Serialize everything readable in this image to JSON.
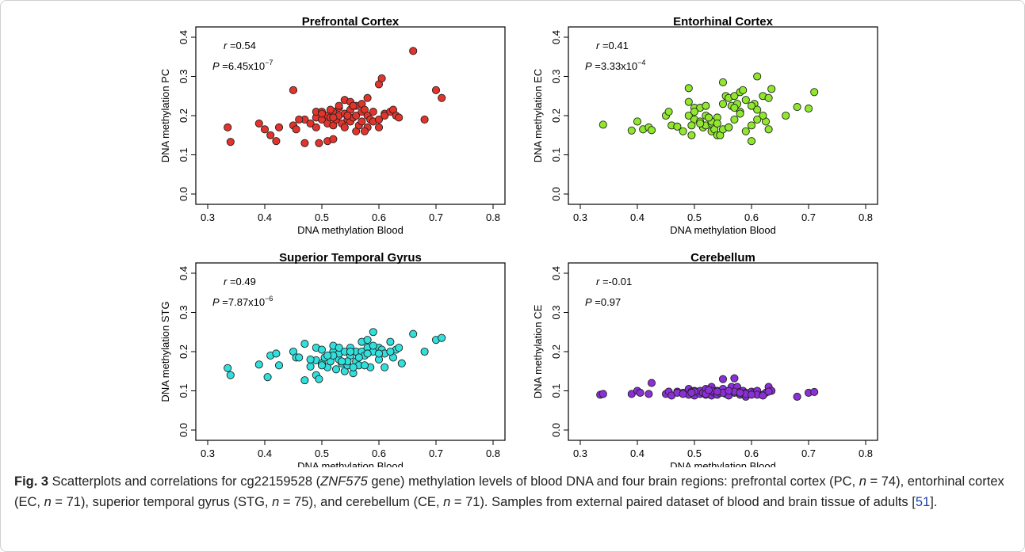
{
  "colors": {
    "pc": "#e3332b",
    "ec": "#8fe82c",
    "stg": "#2fe0dc",
    "ce": "#8b2fd6",
    "ref_link": "#1d3fa8"
  },
  "chart_data": [
    {
      "type": "scatter",
      "title": "Prefrontal Cortex",
      "xlabel": "DNA methylation Blood",
      "ylabel": "DNA methylation PC",
      "xlim": [
        0.3,
        0.8
      ],
      "ylim": [
        0.0,
        0.4
      ],
      "xticks": [
        "0.3",
        "0.4",
        "0.5",
        "0.6",
        "0.7",
        "0.8"
      ],
      "yticks": [
        "0.0",
        "0.1",
        "0.2",
        "0.3",
        "0.4"
      ],
      "r_label": "r",
      "r_value": "=0.54",
      "p_label": "P",
      "p_value": "=6.45x10",
      "p_exp": "−7",
      "color": "#e3332b",
      "x": [
        0.335,
        0.34,
        0.39,
        0.4,
        0.41,
        0.42,
        0.425,
        0.45,
        0.45,
        0.455,
        0.47,
        0.47,
        0.48,
        0.49,
        0.49,
        0.49,
        0.495,
        0.5,
        0.5,
        0.51,
        0.51,
        0.51,
        0.515,
        0.52,
        0.52,
        0.52,
        0.525,
        0.53,
        0.53,
        0.535,
        0.54,
        0.54,
        0.54,
        0.545,
        0.55,
        0.55,
        0.55,
        0.555,
        0.56,
        0.56,
        0.56,
        0.565,
        0.57,
        0.57,
        0.57,
        0.575,
        0.58,
        0.58,
        0.58,
        0.585,
        0.59,
        0.59,
        0.6,
        0.6,
        0.6,
        0.605,
        0.61,
        0.61,
        0.62,
        0.625,
        0.63,
        0.635,
        0.66,
        0.68,
        0.7,
        0.71,
        0.46,
        0.5,
        0.515,
        0.52,
        0.53,
        0.545,
        0.555,
        0.575
      ],
      "y": [
        0.17,
        0.133,
        0.18,
        0.165,
        0.15,
        0.135,
        0.17,
        0.265,
        0.175,
        0.165,
        0.13,
        0.19,
        0.18,
        0.17,
        0.195,
        0.21,
        0.13,
        0.19,
        0.21,
        0.2,
        0.135,
        0.18,
        0.195,
        0.175,
        0.21,
        0.14,
        0.19,
        0.2,
        0.22,
        0.18,
        0.17,
        0.24,
        0.205,
        0.19,
        0.185,
        0.215,
        0.235,
        0.195,
        0.16,
        0.2,
        0.225,
        0.175,
        0.21,
        0.185,
        0.23,
        0.215,
        0.2,
        0.245,
        0.17,
        0.19,
        0.21,
        0.185,
        0.19,
        0.28,
        0.17,
        0.295,
        0.205,
        0.2,
        0.21,
        0.215,
        0.2,
        0.195,
        0.365,
        0.19,
        0.265,
        0.245,
        0.19,
        0.205,
        0.215,
        0.195,
        0.225,
        0.2,
        0.225,
        0.16
      ]
    },
    {
      "type": "scatter",
      "title": "Entorhinal Cortex",
      "xlabel": "DNA methylation Blood",
      "ylabel": "DNA methylation EC",
      "xlim": [
        0.3,
        0.8
      ],
      "ylim": [
        0.0,
        0.4
      ],
      "xticks": [
        "0.3",
        "0.4",
        "0.5",
        "0.6",
        "0.7",
        "0.8"
      ],
      "yticks": [
        "0.0",
        "0.1",
        "0.2",
        "0.3",
        "0.4"
      ],
      "r_label": "r",
      "r_value": "=0.41",
      "p_label": "P",
      "p_value": "=3.33x10",
      "p_exp": "−4",
      "color": "#8fe82c",
      "x": [
        0.34,
        0.39,
        0.4,
        0.41,
        0.42,
        0.425,
        0.45,
        0.455,
        0.46,
        0.47,
        0.48,
        0.49,
        0.49,
        0.495,
        0.5,
        0.5,
        0.51,
        0.51,
        0.515,
        0.52,
        0.52,
        0.525,
        0.53,
        0.53,
        0.535,
        0.54,
        0.54,
        0.545,
        0.55,
        0.55,
        0.555,
        0.56,
        0.56,
        0.565,
        0.57,
        0.57,
        0.575,
        0.58,
        0.58,
        0.585,
        0.59,
        0.59,
        0.6,
        0.6,
        0.605,
        0.61,
        0.61,
        0.62,
        0.625,
        0.63,
        0.635,
        0.66,
        0.68,
        0.7,
        0.71,
        0.49,
        0.51,
        0.52,
        0.53,
        0.55,
        0.57,
        0.6,
        0.62,
        0.5,
        0.54,
        0.56,
        0.58,
        0.61,
        0.63,
        0.495,
        0.525
      ],
      "y": [
        0.177,
        0.162,
        0.185,
        0.165,
        0.17,
        0.163,
        0.2,
        0.21,
        0.175,
        0.172,
        0.16,
        0.2,
        0.27,
        0.15,
        0.19,
        0.22,
        0.185,
        0.22,
        0.17,
        0.175,
        0.225,
        0.195,
        0.16,
        0.18,
        0.165,
        0.15,
        0.195,
        0.15,
        0.23,
        0.285,
        0.25,
        0.17,
        0.245,
        0.225,
        0.19,
        0.25,
        0.23,
        0.26,
        0.21,
        0.265,
        0.16,
        0.24,
        0.135,
        0.175,
        0.23,
        0.215,
        0.3,
        0.25,
        0.185,
        0.245,
        0.268,
        0.2,
        0.222,
        0.218,
        0.26,
        0.235,
        0.18,
        0.2,
        0.185,
        0.165,
        0.22,
        0.225,
        0.2,
        0.21,
        0.18,
        0.17,
        0.205,
        0.19,
        0.165,
        0.175,
        0.195
      ]
    },
    {
      "type": "scatter",
      "title": "Superior Temporal Gyrus",
      "xlabel": "DNA methylation Blood",
      "ylabel": "DNA methylation STG",
      "xlim": [
        0.3,
        0.8
      ],
      "ylim": [
        0.0,
        0.4
      ],
      "xticks": [
        "0.3",
        "0.4",
        "0.5",
        "0.6",
        "0.7",
        "0.8"
      ],
      "yticks": [
        "0.0",
        "0.1",
        "0.2",
        "0.3",
        "0.4"
      ],
      "r_label": "r",
      "r_value": "=0.49",
      "p_label": "P",
      "p_value": "=7.87x10",
      "p_exp": "−6",
      "color": "#2fe0dc",
      "x": [
        0.335,
        0.34,
        0.39,
        0.405,
        0.41,
        0.42,
        0.425,
        0.45,
        0.455,
        0.47,
        0.47,
        0.48,
        0.49,
        0.49,
        0.49,
        0.495,
        0.5,
        0.5,
        0.51,
        0.51,
        0.515,
        0.52,
        0.52,
        0.525,
        0.53,
        0.53,
        0.535,
        0.54,
        0.54,
        0.545,
        0.55,
        0.55,
        0.555,
        0.56,
        0.56,
        0.565,
        0.57,
        0.57,
        0.575,
        0.58,
        0.58,
        0.585,
        0.59,
        0.59,
        0.6,
        0.6,
        0.605,
        0.61,
        0.61,
        0.62,
        0.625,
        0.63,
        0.635,
        0.66,
        0.68,
        0.7,
        0.71,
        0.46,
        0.5,
        0.52,
        0.53,
        0.545,
        0.555,
        0.575,
        0.59,
        0.62,
        0.505,
        0.535,
        0.565,
        0.6,
        0.64,
        0.48,
        0.51,
        0.55,
        0.58
      ],
      "y": [
        0.158,
        0.14,
        0.167,
        0.135,
        0.19,
        0.195,
        0.165,
        0.2,
        0.185,
        0.127,
        0.22,
        0.162,
        0.14,
        0.178,
        0.21,
        0.13,
        0.17,
        0.205,
        0.185,
        0.16,
        0.175,
        0.2,
        0.215,
        0.155,
        0.18,
        0.195,
        0.17,
        0.15,
        0.2,
        0.165,
        0.19,
        0.21,
        0.145,
        0.175,
        0.2,
        0.165,
        0.2,
        0.225,
        0.19,
        0.21,
        0.23,
        0.16,
        0.2,
        0.25,
        0.18,
        0.21,
        0.205,
        0.16,
        0.195,
        0.225,
        0.185,
        0.205,
        0.21,
        0.245,
        0.2,
        0.23,
        0.235,
        0.185,
        0.165,
        0.19,
        0.21,
        0.175,
        0.16,
        0.165,
        0.215,
        0.2,
        0.185,
        0.175,
        0.185,
        0.195,
        0.17,
        0.18,
        0.19,
        0.2,
        0.195
      ]
    },
    {
      "type": "scatter",
      "title": "Cerebellum",
      "xlabel": "DNA methylation Blood",
      "ylabel": "DNA methylation CE",
      "xlim": [
        0.3,
        0.8
      ],
      "ylim": [
        0.0,
        0.4
      ],
      "xticks": [
        "0.3",
        "0.4",
        "0.5",
        "0.6",
        "0.7",
        "0.8"
      ],
      "yticks": [
        "0.0",
        "0.1",
        "0.2",
        "0.3",
        "0.4"
      ],
      "r_label": "r",
      "r_value": "=-0.01",
      "p_label": "P",
      "p_value": "=0.97",
      "p_exp": "",
      "color": "#8b2fd6",
      "x": [
        0.335,
        0.34,
        0.39,
        0.4,
        0.405,
        0.42,
        0.425,
        0.45,
        0.455,
        0.46,
        0.47,
        0.48,
        0.49,
        0.49,
        0.495,
        0.5,
        0.5,
        0.51,
        0.51,
        0.515,
        0.52,
        0.52,
        0.525,
        0.53,
        0.53,
        0.535,
        0.54,
        0.54,
        0.545,
        0.55,
        0.55,
        0.555,
        0.56,
        0.56,
        0.565,
        0.57,
        0.57,
        0.575,
        0.58,
        0.58,
        0.585,
        0.59,
        0.59,
        0.6,
        0.6,
        0.605,
        0.61,
        0.61,
        0.62,
        0.625,
        0.63,
        0.635,
        0.68,
        0.7,
        0.71,
        0.47,
        0.5,
        0.52,
        0.53,
        0.55,
        0.57,
        0.59,
        0.62,
        0.48,
        0.54,
        0.56,
        0.58,
        0.6,
        0.63,
        0.495,
        0.525
      ],
      "y": [
        0.09,
        0.092,
        0.092,
        0.1,
        0.095,
        0.092,
        0.12,
        0.092,
        0.098,
        0.088,
        0.098,
        0.095,
        0.09,
        0.105,
        0.098,
        0.088,
        0.1,
        0.092,
        0.1,
        0.095,
        0.09,
        0.105,
        0.095,
        0.088,
        0.11,
        0.095,
        0.09,
        0.1,
        0.095,
        0.105,
        0.13,
        0.092,
        0.1,
        0.088,
        0.11,
        0.095,
        0.132,
        0.11,
        0.098,
        0.09,
        0.1,
        0.095,
        0.085,
        0.092,
        0.098,
        0.095,
        0.1,
        0.09,
        0.09,
        0.095,
        0.11,
        0.1,
        0.085,
        0.095,
        0.097,
        0.095,
        0.098,
        0.092,
        0.1,
        0.095,
        0.098,
        0.092,
        0.088,
        0.092,
        0.098,
        0.1,
        0.095,
        0.09,
        0.098,
        0.095,
        0.102
      ]
    }
  ],
  "caption": {
    "fig_label": "Fig. 3",
    "t1": " Scatterplots and correlations for cg22159528 (",
    "gene": "ZNF575",
    "t2": " gene) methylation levels of blood DNA and four brain regions: prefrontal cortex (PC, ",
    "n1": "n",
    "t3": " = 74), entorhinal cortex (EC, ",
    "n2": "n",
    "t4": " = 71), superior temporal gyrus (STG, ",
    "n3": "n",
    "t5": " = 75), and cerebellum (CE, ",
    "n4": "n",
    "t6": " = 71). Samples from external paired dataset of blood and brain tissue of adults [",
    "ref": "51",
    "t7": "]."
  }
}
